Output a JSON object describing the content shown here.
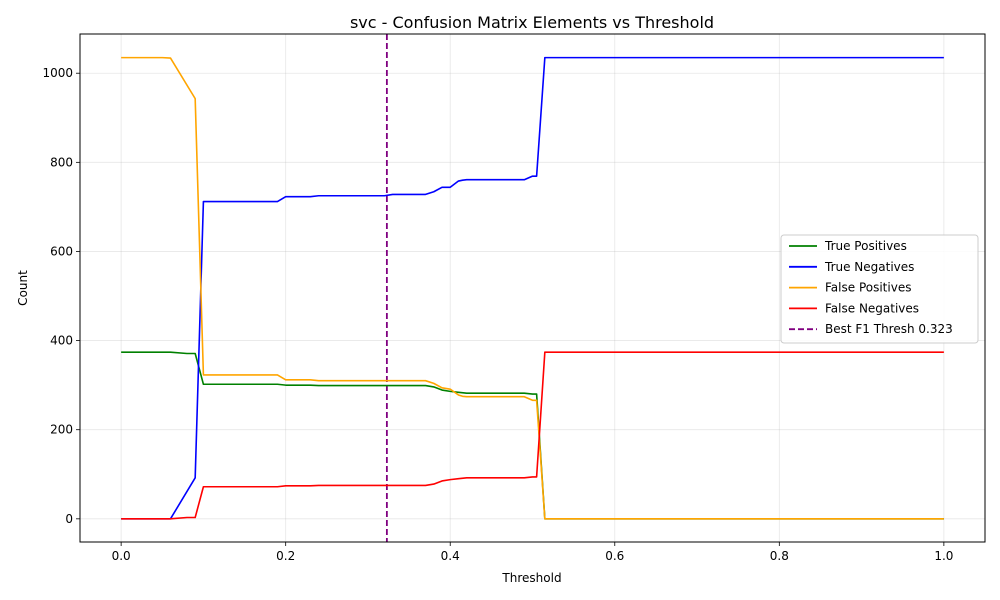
{
  "chart_data": {
    "type": "line",
    "title": "svc - Confusion Matrix Elements vs Threshold",
    "xlabel": "Threshold",
    "ylabel": "Count",
    "xlim": [
      -0.05,
      1.05
    ],
    "ylim": [
      -52,
      1088
    ],
    "xticks": [
      0.0,
      0.2,
      0.4,
      0.6,
      0.8,
      1.0
    ],
    "xtick_labels": [
      "0.0",
      "0.2",
      "0.4",
      "0.6",
      "0.8",
      "1.0"
    ],
    "yticks": [
      0,
      200,
      400,
      600,
      800,
      1000
    ],
    "ytick_labels": [
      "0",
      "200",
      "400",
      "600",
      "800",
      "1000"
    ],
    "grid": true,
    "legend_position": "center-right",
    "series": [
      {
        "name": "True Positives",
        "color": "#008000",
        "x": [
          0.0,
          0.06,
          0.08,
          0.09,
          0.1,
          0.19,
          0.2,
          0.23,
          0.24,
          0.37,
          0.38,
          0.39,
          0.4,
          0.41,
          0.42,
          0.49,
          0.5,
          0.505,
          0.515,
          0.52,
          1.0
        ],
        "y": [
          374,
          374,
          371,
          371,
          302,
          302,
          300,
          300,
          299,
          299,
          296,
          289,
          286,
          284,
          282,
          282,
          280,
          280,
          0,
          0,
          0
        ]
      },
      {
        "name": "True Negatives",
        "color": "#0000ff",
        "x": [
          0.0,
          0.06,
          0.09,
          0.1,
          0.19,
          0.2,
          0.23,
          0.24,
          0.32,
          0.33,
          0.37,
          0.38,
          0.39,
          0.4,
          0.41,
          0.415,
          0.42,
          0.49,
          0.5,
          0.505,
          0.515,
          0.52,
          1.0
        ],
        "y": [
          0,
          0,
          92,
          712,
          712,
          723,
          723,
          725,
          725,
          728,
          728,
          734,
          744,
          744,
          758,
          760,
          761,
          761,
          769,
          769,
          1035,
          1035,
          1035
        ]
      },
      {
        "name": "False Positives",
        "color": "#ffa500",
        "x": [
          0.0,
          0.05,
          0.06,
          0.09,
          0.1,
          0.19,
          0.2,
          0.23,
          0.24,
          0.37,
          0.38,
          0.39,
          0.4,
          0.41,
          0.415,
          0.42,
          0.49,
          0.5,
          0.505,
          0.515,
          0.52,
          1.0
        ],
        "y": [
          1035,
          1035,
          1034,
          943,
          323,
          323,
          312,
          312,
          310,
          310,
          304,
          294,
          291,
          278,
          275,
          274,
          274,
          266,
          266,
          0,
          0,
          0
        ]
      },
      {
        "name": "False Negatives",
        "color": "#ff0000",
        "x": [
          0.0,
          0.06,
          0.08,
          0.09,
          0.1,
          0.19,
          0.2,
          0.23,
          0.24,
          0.37,
          0.38,
          0.39,
          0.4,
          0.41,
          0.42,
          0.49,
          0.5,
          0.505,
          0.515,
          0.52,
          1.0
        ],
        "y": [
          0,
          0,
          3,
          3,
          72,
          72,
          74,
          74,
          75,
          75,
          78,
          85,
          88,
          90,
          92,
          92,
          94,
          94,
          374,
          374,
          374
        ]
      }
    ],
    "vlines": [
      {
        "name": "Best F1 Thresh 0.323",
        "x": 0.323,
        "color": "#800080",
        "style": "dashed"
      }
    ]
  }
}
